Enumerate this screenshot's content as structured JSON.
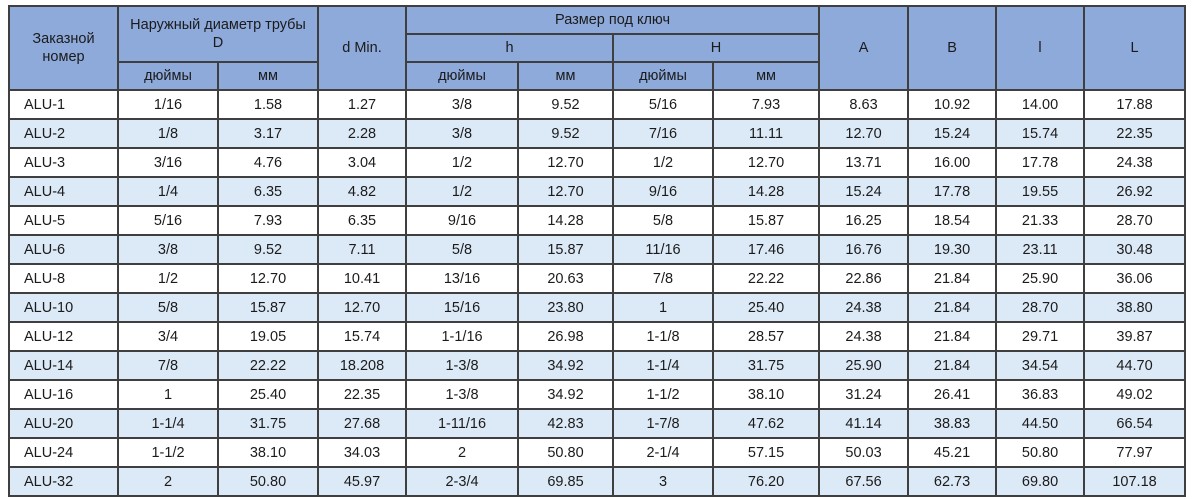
{
  "colors": {
    "header_bg": "#8EAADB",
    "alt_row_bg": "#DCE9F7",
    "row_bg": "#FFFFFF",
    "border": "#3F3F3F",
    "text": "#1B1B1B"
  },
  "table": {
    "header": {
      "order_number": "Заказной номер",
      "outer_diameter": "Наружный диаметр трубы D",
      "d_min": "d Min.",
      "wrench_size": "Размер под ключ",
      "h_small": "h",
      "h_big": "H",
      "inches": "дюймы",
      "mm": "мм",
      "a": "A",
      "b": "B",
      "l_small": "l",
      "l_big": "L"
    },
    "columns": [
      "order_number",
      "D_inches",
      "D_mm",
      "d_min",
      "h_inches",
      "h_mm",
      "H_inches",
      "H_mm",
      "A",
      "B",
      "l",
      "L"
    ],
    "rows": [
      {
        "values": [
          "ALU-1",
          "1/16",
          "1.58",
          "1.27",
          "3/8",
          "9.52",
          "5/16",
          "7.93",
          "8.63",
          "10.92",
          "14.00",
          "17.88"
        ]
      },
      {
        "values": [
          "ALU-2",
          "1/8",
          "3.17",
          "2.28",
          "3/8",
          "9.52",
          "7/16",
          "11.11",
          "12.70",
          "15.24",
          "15.74",
          "22.35"
        ]
      },
      {
        "values": [
          "ALU-3",
          "3/16",
          "4.76",
          "3.04",
          "1/2",
          "12.70",
          "1/2",
          "12.70",
          "13.71",
          "16.00",
          "17.78",
          "24.38"
        ]
      },
      {
        "values": [
          "ALU-4",
          "1/4",
          "6.35",
          "4.82",
          "1/2",
          "12.70",
          "9/16",
          "14.28",
          "15.24",
          "17.78",
          "19.55",
          "26.92"
        ]
      },
      {
        "values": [
          "ALU-5",
          "5/16",
          "7.93",
          "6.35",
          "9/16",
          "14.28",
          "5/8",
          "15.87",
          "16.25",
          "18.54",
          "21.33",
          "28.70"
        ]
      },
      {
        "values": [
          "ALU-6",
          "3/8",
          "9.52",
          "7.11",
          "5/8",
          "15.87",
          "11/16",
          "17.46",
          "16.76",
          "19.30",
          "23.11",
          "30.48"
        ]
      },
      {
        "values": [
          "ALU-8",
          "1/2",
          "12.70",
          "10.41",
          "13/16",
          "20.63",
          "7/8",
          "22.22",
          "22.86",
          "21.84",
          "25.90",
          "36.06"
        ]
      },
      {
        "values": [
          "ALU-10",
          "5/8",
          "15.87",
          "12.70",
          "15/16",
          "23.80",
          "1",
          "25.40",
          "24.38",
          "21.84",
          "28.70",
          "38.80"
        ]
      },
      {
        "values": [
          "ALU-12",
          "3/4",
          "19.05",
          "15.74",
          "1-1/16",
          "26.98",
          "1-1/8",
          "28.57",
          "24.38",
          "21.84",
          "29.71",
          "39.87"
        ]
      },
      {
        "values": [
          "ALU-14",
          "7/8",
          "22.22",
          "18.208",
          "1-3/8",
          "34.92",
          "1-1/4",
          "31.75",
          "25.90",
          "21.84",
          "34.54",
          "44.70"
        ]
      },
      {
        "values": [
          "ALU-16",
          "1",
          "25.40",
          "22.35",
          "1-3/8",
          "34.92",
          "1-1/2",
          "38.10",
          "31.24",
          "26.41",
          "36.83",
          "49.02"
        ]
      },
      {
        "values": [
          "ALU-20",
          "1-1/4",
          "31.75",
          "27.68",
          "1-11/16",
          "42.83",
          "1-7/8",
          "47.62",
          "41.14",
          "38.83",
          "44.50",
          "66.54"
        ]
      },
      {
        "values": [
          "ALU-24",
          "1-1/2",
          "38.10",
          "34.03",
          "2",
          "50.80",
          "2-1/4",
          "57.15",
          "50.03",
          "45.21",
          "50.80",
          "77.97"
        ]
      },
      {
        "values": [
          "ALU-32",
          "2",
          "50.80",
          "45.97",
          "2-3/4",
          "69.85",
          "3",
          "76.20",
          "67.56",
          "62.73",
          "69.80",
          "107.18"
        ]
      }
    ]
  }
}
